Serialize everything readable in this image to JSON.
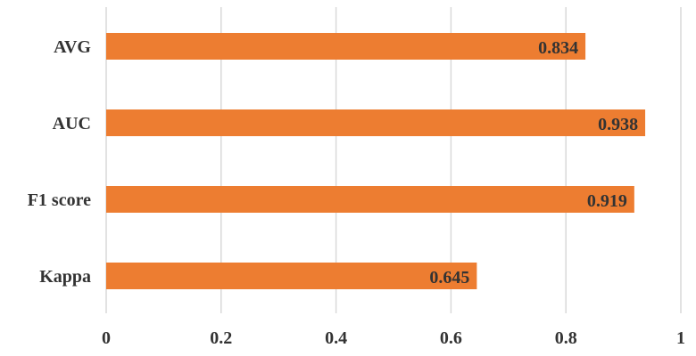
{
  "chart_data": {
    "type": "bar",
    "orientation": "horizontal",
    "categories": [
      "AVG",
      "AUC",
      "F1 score",
      "Kappa"
    ],
    "values": [
      0.834,
      0.938,
      0.919,
      0.645
    ],
    "value_labels": [
      "0.834",
      "0.938",
      "0.919",
      "0.645"
    ],
    "xlim": [
      0,
      1
    ],
    "x_ticks": [
      "0",
      "0.2",
      "0.4",
      "0.6",
      "0.8",
      "1"
    ],
    "title": "",
    "xlabel": "",
    "ylabel": "",
    "grid": "vertical",
    "legend": "none",
    "bar_color": "#ED7D31"
  }
}
